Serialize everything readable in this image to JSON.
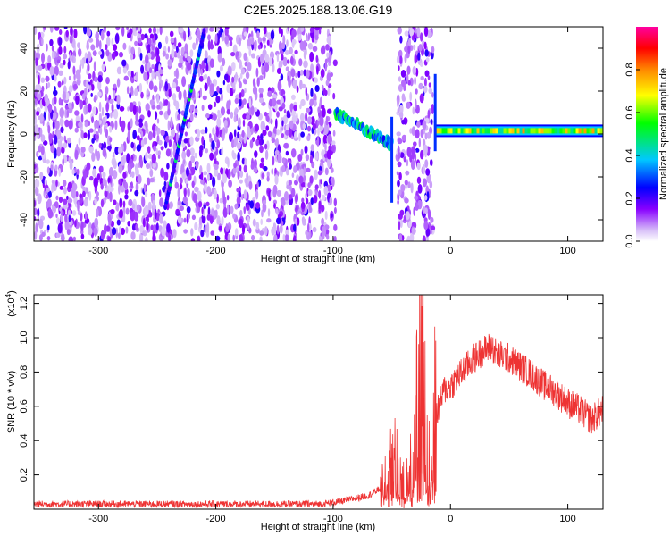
{
  "title": "C2E5.2025.188.13.06.G19",
  "chart_data": [
    {
      "type": "heatmap",
      "title": "C2E5.2025.188.13.06.G19",
      "xlabel": "Height of straight line (km)",
      "ylabel": "Frequency (Hz)",
      "xlim": [
        -355,
        130
      ],
      "ylim": [
        -50,
        50
      ],
      "x_ticks": [
        -300,
        -200,
        -100,
        0,
        100
      ],
      "x_tick_labels": [
        "-300",
        "-200",
        "-100",
        "0",
        "100"
      ],
      "y_ticks": [
        -40,
        -20,
        0,
        20,
        40
      ],
      "y_tick_labels": [
        "-40",
        "-20",
        "0",
        "20",
        "40"
      ],
      "colorbar": {
        "label": "Normalized spectral amplitude",
        "range": [
          0.0,
          1.0
        ],
        "ticks": [
          0.0,
          0.2,
          0.4,
          0.6,
          0.8
        ],
        "tick_labels": [
          "0.0",
          "0.2",
          "0.4",
          "0.6",
          "0.8"
        ],
        "colormap": [
          "#ffffff",
          "#c8a8f0",
          "#8800ff",
          "#0000ff",
          "#00c8ff",
          "#00ff00",
          "#ffff00",
          "#ff8800",
          "#ff0000",
          "#ff00a0"
        ]
      },
      "features": [
        {
          "name": "background noise",
          "x_range": [
            -355,
            -98
          ],
          "y_range": [
            -50,
            50
          ],
          "amplitude": 0.15
        },
        {
          "name": "diagonal streak",
          "x_start": -243,
          "y_start": -34,
          "x_end": -210,
          "y_end": 48,
          "amplitude": 0.3
        },
        {
          "name": "tone segment",
          "x_range": [
            -98,
            -50
          ],
          "y_start": 10,
          "y_end": -5,
          "amplitude": 0.45
        },
        {
          "name": "noise band",
          "x_range": [
            -45,
            -15
          ],
          "y_range": [
            -50,
            50
          ],
          "amplitude": 0.15
        },
        {
          "name": "stable tone",
          "x_range": [
            -12,
            130
          ],
          "y_center": 1.5,
          "amplitude": 0.7
        }
      ]
    },
    {
      "type": "line",
      "xlabel": "Height of straight line (km)",
      "ylabel": "SNR (10 * v/v)",
      "y_multiplier": "(x10",
      "y_multiplier_exp": "4",
      "y_multiplier_close": ")",
      "xlim": [
        -355,
        130
      ],
      "ylim": [
        0.0,
        1.25
      ],
      "x_ticks": [
        -300,
        -200,
        -100,
        0,
        100
      ],
      "x_tick_labels": [
        "-300",
        "-200",
        "-100",
        "0",
        "100"
      ],
      "y_ticks": [
        0.2,
        0.4,
        0.6,
        0.8,
        1.0,
        1.2
      ],
      "y_tick_labels": [
        "0.2",
        "0.4",
        "0.6",
        "0.8",
        "1.0",
        "1.2"
      ],
      "series_color": "#ee3333",
      "x": [
        -355,
        -300,
        -250,
        -200,
        -150,
        -110,
        -90,
        -70,
        -60,
        -55,
        -50,
        -45,
        -40,
        -35,
        -30,
        -28,
        -25,
        -22,
        -20,
        -18,
        -15,
        -12,
        -10,
        -5,
        0,
        10,
        20,
        30,
        35,
        40,
        50,
        60,
        70,
        80,
        90,
        100,
        110,
        120,
        130
      ],
      "values": [
        0.03,
        0.03,
        0.03,
        0.03,
        0.03,
        0.03,
        0.05,
        0.08,
        0.12,
        0.22,
        0.35,
        0.25,
        0.15,
        0.2,
        0.45,
        0.65,
        0.9,
        1.1,
        0.6,
        0.3,
        0.65,
        0.55,
        0.6,
        0.7,
        0.72,
        0.8,
        0.88,
        0.93,
        0.95,
        0.9,
        0.88,
        0.83,
        0.78,
        0.72,
        0.68,
        0.62,
        0.58,
        0.52,
        0.58
      ]
    }
  ]
}
